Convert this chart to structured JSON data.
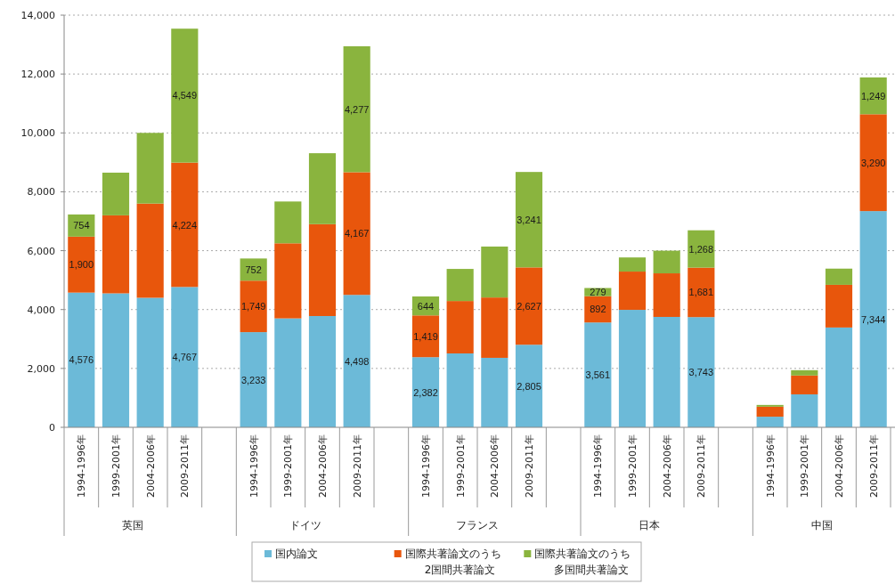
{
  "chart_data": {
    "type": "bar",
    "stacked": true,
    "categories": [
      "1994-1996年",
      "1999-2001年",
      "2004-2006年",
      "2009-2011年",
      null,
      "1994-1996年",
      "1999-2001年",
      "2004-2006年",
      "2009-2011年",
      null,
      "1994-1996年",
      "1999-2001年",
      "2004-2006年",
      "2009-2011年",
      null,
      "1994-1996年",
      "1999-2001年",
      "2004-2006年",
      "2009-2011年",
      null,
      "1994-1996年",
      "1999-2001年",
      "2004-2006年",
      "2009-2011年"
    ],
    "series": [
      {
        "name": "国内論文",
        "color": "#6cbad8",
        "values": [
          4576,
          4550,
          4400,
          4767,
          null,
          3233,
          3700,
          3780,
          4498,
          null,
          2382,
          2510,
          2360,
          2805,
          null,
          3561,
          3990,
          3750,
          3743,
          null,
          360,
          1120,
          3390,
          7344
        ],
        "value_labels": [
          "4,576",
          null,
          null,
          "4,767",
          null,
          "3,233",
          null,
          null,
          "4,498",
          null,
          "2,382",
          null,
          null,
          "2,805",
          null,
          "3,561",
          null,
          null,
          "3,743",
          null,
          null,
          null,
          null,
          "7,344"
        ]
      },
      {
        "name": "国際共著論文のうち2国間共著論文",
        "color": "#e8560c",
        "values": [
          1900,
          2650,
          3200,
          4224,
          null,
          1749,
          2550,
          3120,
          4167,
          null,
          1419,
          1780,
          2050,
          2627,
          null,
          892,
          1300,
          1480,
          1681,
          null,
          340,
          640,
          1450,
          3290
        ],
        "value_labels": [
          "1,900",
          null,
          null,
          "4,224",
          null,
          "1,749",
          null,
          null,
          "4,167",
          null,
          "1,419",
          null,
          null,
          "2,627",
          null,
          "892",
          null,
          null,
          "1,681",
          null,
          null,
          null,
          null,
          "3,290"
        ]
      },
      {
        "name": "国際共著論文のうち多国間共著論文",
        "color": "#8ab43e",
        "values": [
          754,
          1450,
          2400,
          4549,
          null,
          752,
          1420,
          2410,
          4277,
          null,
          644,
          1090,
          1730,
          3241,
          null,
          279,
          480,
          770,
          1268,
          null,
          60,
          180,
          550,
          1249
        ],
        "value_labels": [
          "754",
          null,
          null,
          "4,549",
          null,
          "752",
          null,
          null,
          "4,277",
          null,
          "644",
          null,
          null,
          "3,241",
          null,
          "279",
          null,
          null,
          "1,268",
          null,
          null,
          null,
          null,
          "1,249"
        ]
      }
    ],
    "ylim": [
      0,
      14000
    ],
    "yticks": [
      0,
      {
        "value": 2000,
        "label": "2,000"
      },
      {
        "value": 4000,
        "label": "4,000"
      },
      {
        "value": 6000,
        "label": "6,000"
      },
      {
        "value": 8000,
        "label": "8,000"
      },
      {
        "value": 10000,
        "label": "10,000"
      },
      {
        "value": 12000,
        "label": "12,000"
      },
      {
        "value": 14000,
        "label": "14,000"
      }
    ],
    "grid": "y",
    "legend": "bottom",
    "annotations": [
      "英国",
      "ドイツ",
      "フランス",
      "日本",
      "中国"
    ]
  }
}
